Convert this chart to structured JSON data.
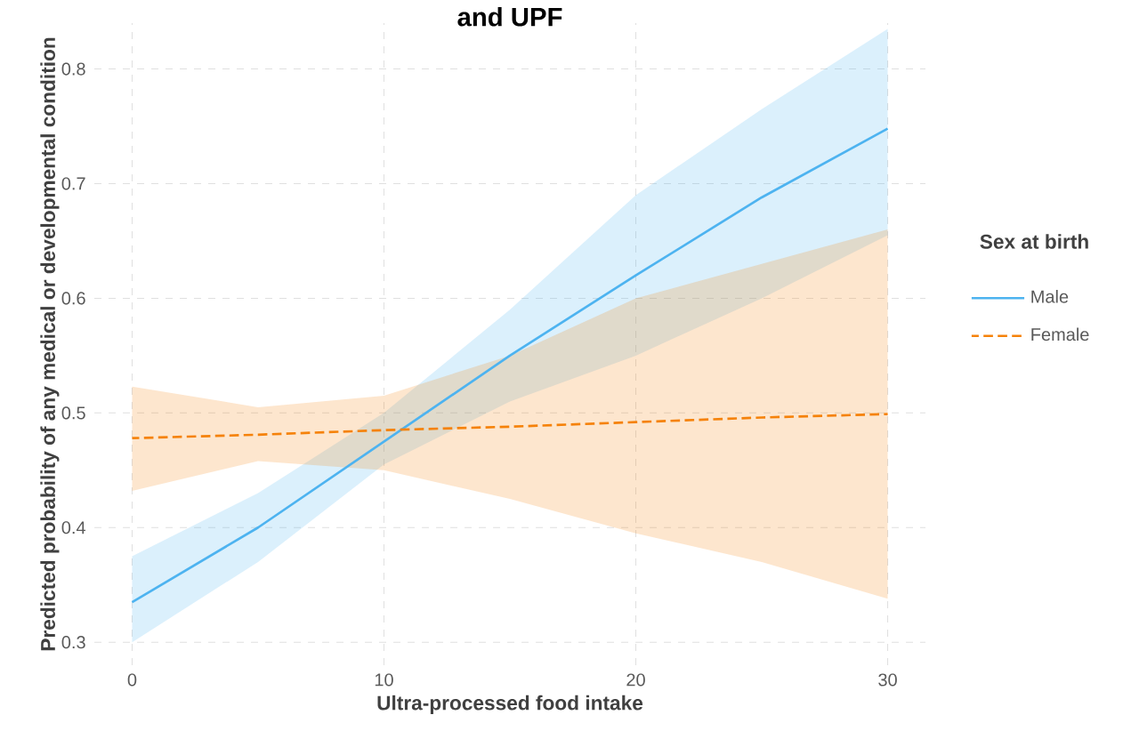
{
  "chart_data": {
    "type": "line",
    "title": "and UPF",
    "xlabel": "Ultra-processed food intake",
    "ylabel": "Predicted probability of any medical or developmental condition",
    "legend_title": "Sex at birth",
    "x": [
      0,
      5,
      10,
      15,
      20,
      25,
      30
    ],
    "series": [
      {
        "name": "Male",
        "color": "#4db3f0",
        "line_style": "solid",
        "values": [
          0.335,
          0.4,
          0.475,
          0.55,
          0.62,
          0.688,
          0.748
        ],
        "lower": [
          0.3,
          0.37,
          0.455,
          0.51,
          0.55,
          0.6,
          0.655
        ],
        "upper": [
          0.375,
          0.43,
          0.5,
          0.59,
          0.69,
          0.765,
          0.835
        ]
      },
      {
        "name": "Female",
        "color": "#f5820a",
        "line_style": "dashed",
        "values": [
          0.478,
          0.481,
          0.485,
          0.488,
          0.492,
          0.496,
          0.499
        ],
        "lower": [
          0.432,
          0.458,
          0.45,
          0.425,
          0.395,
          0.37,
          0.338
        ],
        "upper": [
          0.523,
          0.505,
          0.515,
          0.55,
          0.6,
          0.63,
          0.66
        ]
      }
    ],
    "xlim": [
      -1.5,
      31.5
    ],
    "ylim": [
      0.28,
      0.84
    ],
    "xticks": [
      0,
      10,
      20,
      30
    ],
    "yticks": [
      0.3,
      0.4,
      0.5,
      0.6,
      0.7,
      0.8
    ],
    "grid": true,
    "legend": "right",
    "marker": "none"
  }
}
